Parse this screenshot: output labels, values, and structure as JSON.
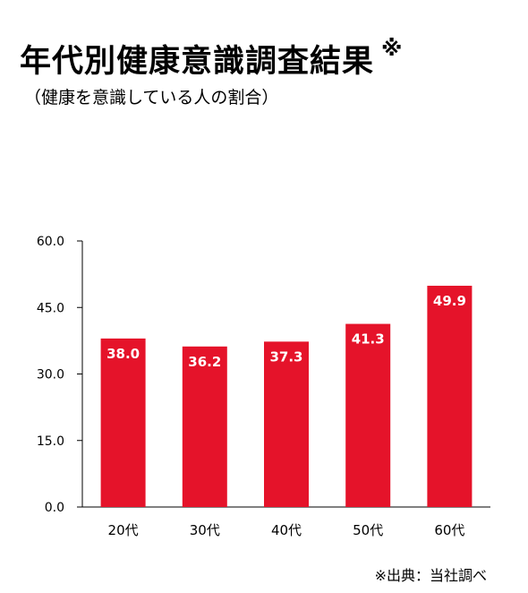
{
  "title": "年代別健康意識調査結果",
  "title_mark": "※",
  "subtitle": "（健康を意識している人の割合）",
  "source": "※出典：当社調べ",
  "colors": {
    "bar": "#e5132a",
    "bar_label": "#ffffff",
    "axis": "#000000"
  },
  "chart_data": {
    "type": "bar",
    "title": "年代別健康意識調査結果",
    "categories": [
      "20代",
      "30代",
      "40代",
      "50代",
      "60代"
    ],
    "values": [
      38.0,
      36.2,
      37.3,
      41.3,
      49.9
    ],
    "data_labels": [
      "38.0",
      "36.2",
      "37.3",
      "41.3",
      "49.9"
    ],
    "ylim": [
      0,
      60
    ],
    "yticks": [
      0,
      15,
      30,
      45,
      60
    ],
    "ytick_labels": [
      "0.0",
      "15.0",
      "30.0",
      "45.0",
      "60.0"
    ],
    "xlabel": "",
    "ylabel": "",
    "grid": false,
    "legend": "none"
  }
}
